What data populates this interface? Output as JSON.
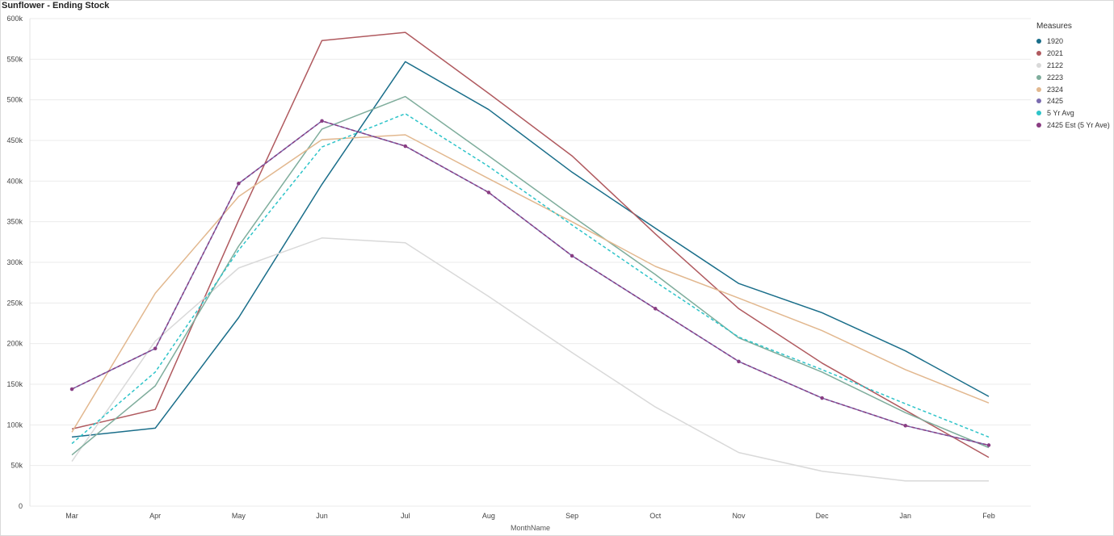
{
  "chart_data": {
    "type": "line",
    "title": "Sunflower - Ending Stock",
    "xlabel": "MonthName",
    "ylabel": "",
    "ylim": [
      0,
      600000
    ],
    "yticks": [
      0,
      50000,
      100000,
      150000,
      200000,
      250000,
      300000,
      350000,
      400000,
      450000,
      500000,
      550000,
      600000
    ],
    "ytick_labels": [
      "0",
      "50k",
      "100k",
      "150k",
      "200k",
      "250k",
      "300k",
      "350k",
      "400k",
      "450k",
      "500k",
      "550k",
      "600k"
    ],
    "categories": [
      "Mar",
      "Apr",
      "May",
      "Jun",
      "Jul",
      "Aug",
      "Sep",
      "Oct",
      "Nov",
      "Dec",
      "Jan",
      "Feb"
    ],
    "grid": "horizontal",
    "legend_title": "Measures",
    "legend_position": "right",
    "series": [
      {
        "name": "1920",
        "color": "#1a6e8a",
        "dash": false,
        "markers": false,
        "values": [
          85000,
          96000,
          232000,
          396000,
          547000,
          488000,
          411000,
          342000,
          274000,
          238000,
          191000,
          135000
        ]
      },
      {
        "name": "2021",
        "color": "#b05a5f",
        "dash": false,
        "markers": false,
        "values": [
          95000,
          119000,
          352000,
          573000,
          583000,
          508000,
          431000,
          335000,
          243000,
          176000,
          118000,
          60000
        ]
      },
      {
        "name": "2122",
        "color": "#d9d9d9",
        "dash": false,
        "markers": false,
        "values": [
          55000,
          203000,
          293000,
          330000,
          324000,
          258000,
          189000,
          122000,
          66000,
          43000,
          31000,
          31000
        ]
      },
      {
        "name": "2223",
        "color": "#7fad9c",
        "dash": false,
        "markers": false,
        "values": [
          63000,
          148000,
          320000,
          464000,
          504000,
          431000,
          357000,
          285000,
          207000,
          165000,
          115000,
          72000
        ]
      },
      {
        "name": "2324",
        "color": "#e2b88f",
        "dash": false,
        "markers": false,
        "values": [
          91000,
          262000,
          381000,
          451000,
          457000,
          403000,
          350000,
          295000,
          256000,
          216000,
          168000,
          127000
        ]
      },
      {
        "name": "2425",
        "color": "#7b6cb0",
        "dash": false,
        "markers": true,
        "values": [
          144000,
          194000,
          397000,
          474000,
          443000,
          386000,
          308000,
          243000,
          178000,
          133000,
          99000,
          75000
        ]
      },
      {
        "name": "5 Yr Avg",
        "color": "#2ec4c9",
        "dash": true,
        "markers": false,
        "values": [
          77000,
          165000,
          315000,
          442000,
          483000,
          418000,
          346000,
          276000,
          208000,
          168000,
          126000,
          85000
        ]
      },
      {
        "name": "2425 Est (5 Yr Ave)",
        "color": "#8a3d82",
        "dash": true,
        "markers": true,
        "values": [
          144000,
          194000,
          397000,
          474000,
          443000,
          386000,
          308000,
          243000,
          178000,
          133000,
          99000,
          75000
        ]
      }
    ]
  }
}
